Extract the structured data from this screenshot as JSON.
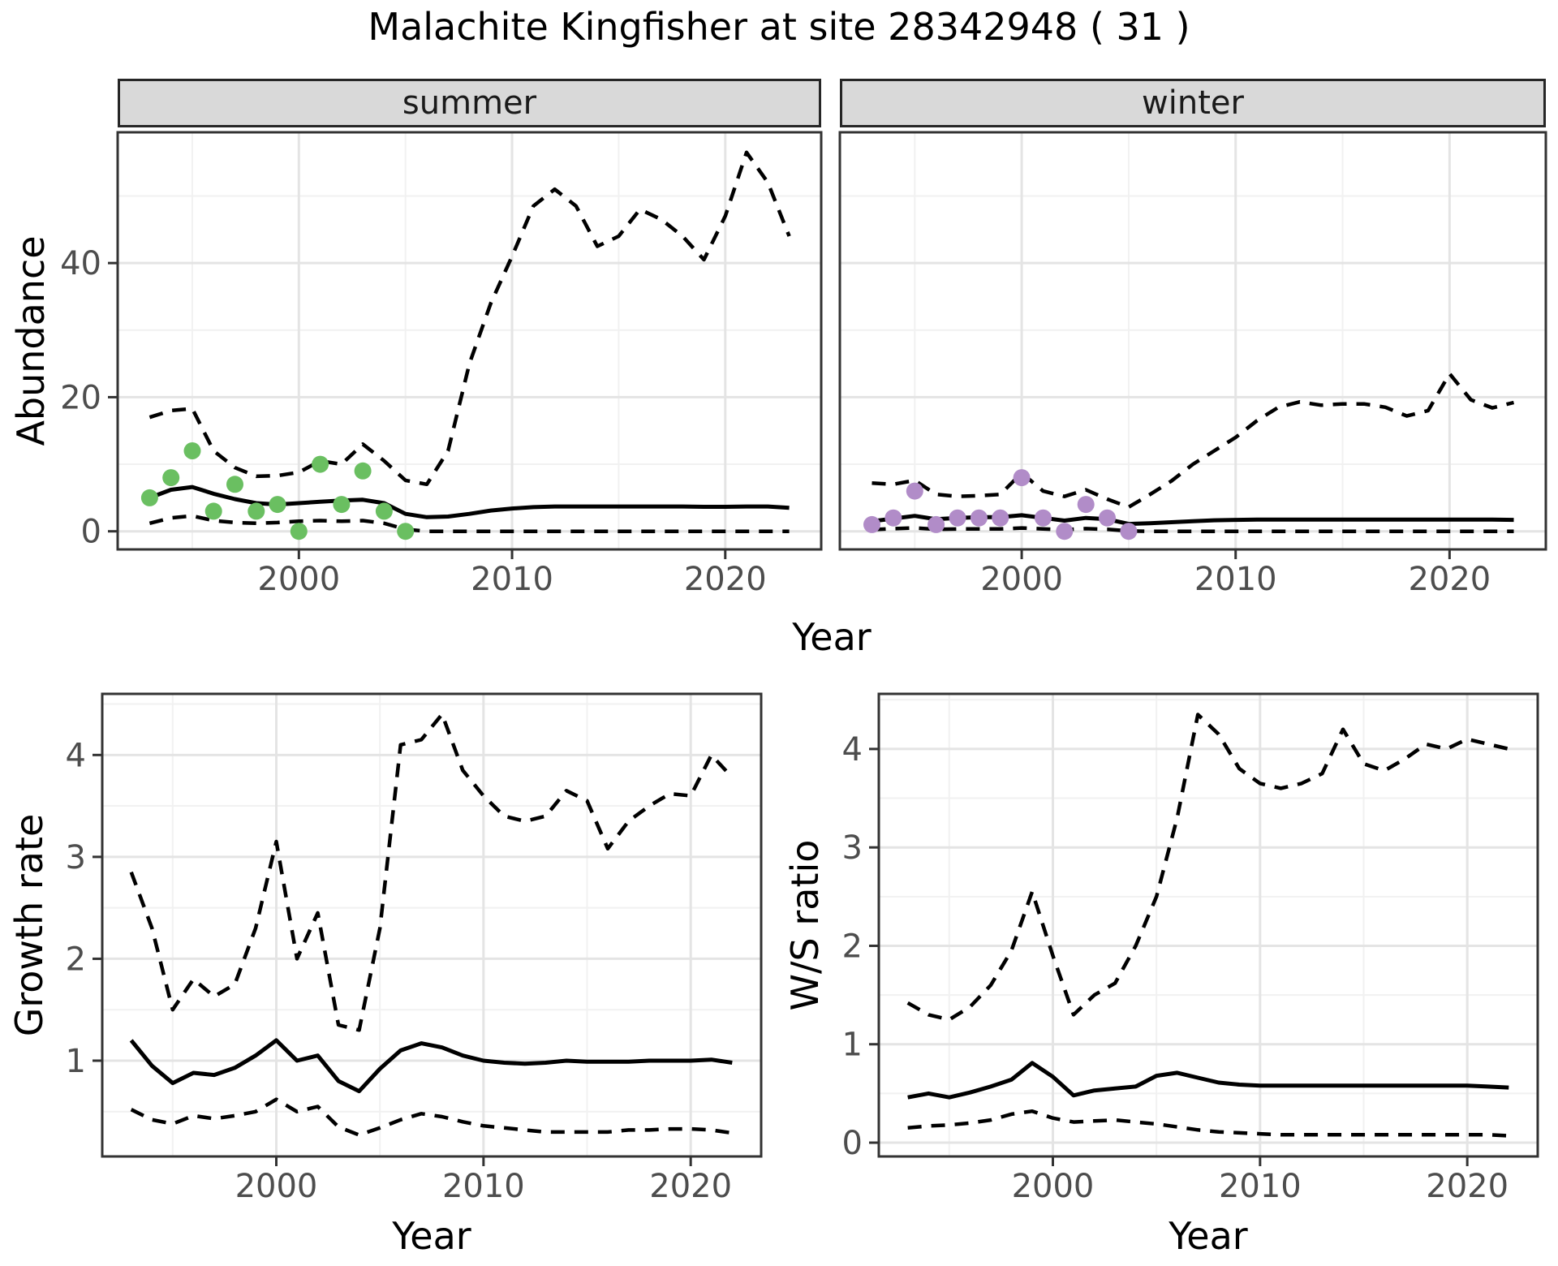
{
  "title": "Malachite Kingfisher at site 28342948 ( 31 )",
  "colors": {
    "summer_points": "#6abf61",
    "winter_points": "#b18cc8",
    "line": "#000000",
    "panel_border": "#333333",
    "grid_major": "#e4e4e4",
    "grid_minor": "#f1f1f1",
    "tick_text": "#4d4d4d",
    "strip_bg": "#d9d9d9"
  },
  "chart_data": [
    {
      "id": "abundance-summer",
      "type": "line",
      "facet": "summer",
      "xlabel": "Year",
      "ylabel": "Abundance",
      "xlim": [
        1991.5,
        2024.5
      ],
      "ylim": [
        -2.7,
        59.5
      ],
      "xticks": [
        2000,
        2010,
        2020
      ],
      "xticks_minor": [
        1995,
        2005,
        2015
      ],
      "yticks": [
        0,
        20,
        40
      ],
      "yticks_minor": [
        10,
        30,
        50
      ],
      "grid": true,
      "legend": "none",
      "series": [
        {
          "name": "upper-credible",
          "style": "dashed",
          "x": [
            1993,
            1994,
            1995,
            1996,
            1997,
            1998,
            1999,
            2000,
            2001,
            2002,
            2003,
            2004,
            2005,
            2006,
            2007,
            2008,
            2009,
            2010,
            2011,
            2012,
            2013,
            2014,
            2015,
            2016,
            2017,
            2018,
            2019,
            2020,
            2021,
            2022,
            2023
          ],
          "y": [
            17,
            18,
            18.3,
            12,
            9.5,
            8.2,
            8.3,
            8.8,
            10.5,
            10,
            13,
            10.5,
            7.6,
            7.0,
            12,
            25,
            34,
            41,
            48.5,
            51,
            48.5,
            42.5,
            44,
            48,
            46.5,
            44,
            40.5,
            47,
            56.5,
            52,
            44
          ]
        },
        {
          "name": "lower-credible",
          "style": "dashed",
          "x": [
            1993,
            1994,
            1995,
            1996,
            1997,
            1998,
            1999,
            2000,
            2001,
            2002,
            2003,
            2004,
            2005,
            2006,
            2007,
            2008,
            2009,
            2010,
            2011,
            2012,
            2013,
            2014,
            2015,
            2016,
            2017,
            2018,
            2019,
            2020,
            2021,
            2022,
            2023
          ],
          "y": [
            1.2,
            2.0,
            2.3,
            1.6,
            1.3,
            1.2,
            1.3,
            1.5,
            1.6,
            1.5,
            1.6,
            1.2,
            0.3,
            0,
            0,
            0,
            0,
            0,
            0,
            0,
            0,
            0,
            0,
            0,
            0,
            0,
            0,
            0,
            0,
            0,
            0
          ]
        },
        {
          "name": "median",
          "style": "solid",
          "x": [
            1993,
            1994,
            1995,
            1996,
            1997,
            1998,
            1999,
            2000,
            2001,
            2002,
            2003,
            2004,
            2005,
            2006,
            2007,
            2008,
            2009,
            2010,
            2011,
            2012,
            2013,
            2014,
            2015,
            2016,
            2017,
            2018,
            2019,
            2020,
            2021,
            2022,
            2023
          ],
          "y": [
            5.0,
            6.2,
            6.6,
            5.6,
            4.8,
            4.2,
            4.0,
            4.2,
            4.4,
            4.6,
            4.7,
            4.2,
            2.6,
            2.1,
            2.2,
            2.6,
            3.1,
            3.4,
            3.6,
            3.7,
            3.7,
            3.7,
            3.7,
            3.7,
            3.7,
            3.7,
            3.65,
            3.65,
            3.7,
            3.7,
            3.5
          ]
        }
      ],
      "points": {
        "name": "observed-counts",
        "color_key": "summer_points",
        "x": [
          1993,
          1994,
          1995,
          1996,
          1997,
          1998,
          1999,
          2000,
          2001,
          2002,
          2003,
          2004,
          2005
        ],
        "y": [
          5,
          8,
          12,
          3,
          7,
          3,
          4,
          0,
          10,
          4,
          9,
          3,
          0
        ]
      }
    },
    {
      "id": "abundance-winter",
      "type": "line",
      "facet": "winter",
      "xlabel": "Year",
      "ylabel": "Abundance",
      "xlim": [
        1991.5,
        2024.5
      ],
      "ylim": [
        -2.7,
        59.5
      ],
      "xticks": [
        2000,
        2010,
        2020
      ],
      "xticks_minor": [
        1995,
        2005,
        2015
      ],
      "yticks": [],
      "yticks_minor": [],
      "ygrid": [
        0,
        20,
        40
      ],
      "ygrid_minor": [
        10,
        30,
        50
      ],
      "grid": true,
      "legend": "none",
      "series": [
        {
          "name": "upper-credible",
          "style": "dashed",
          "x": [
            1993,
            1994,
            1995,
            1996,
            1997,
            1998,
            1999,
            2000,
            2001,
            2002,
            2003,
            2004,
            2005,
            2006,
            2007,
            2008,
            2009,
            2010,
            2011,
            2012,
            2013,
            2014,
            2015,
            2016,
            2017,
            2018,
            2019,
            2020,
            2021,
            2022,
            2023
          ],
          "y": [
            7.2,
            7.0,
            7.6,
            5.5,
            5.2,
            5.3,
            5.5,
            8.7,
            6.0,
            5.2,
            6.2,
            4.8,
            3.6,
            5.5,
            7.5,
            10,
            12,
            14,
            16.5,
            18.5,
            19.3,
            18.8,
            19,
            19,
            18.5,
            17.2,
            18,
            23.5,
            19.6,
            18.4,
            19.2
          ]
        },
        {
          "name": "lower-credible",
          "style": "dashed",
          "x": [
            1993,
            1994,
            1995,
            1996,
            1997,
            1998,
            1999,
            2000,
            2001,
            2002,
            2003,
            2004,
            2005,
            2006,
            2007,
            2008,
            2009,
            2010,
            2011,
            2012,
            2013,
            2014,
            2015,
            2016,
            2017,
            2018,
            2019,
            2020,
            2021,
            2022,
            2023
          ],
          "y": [
            0.25,
            0.4,
            0.5,
            0.3,
            0.35,
            0.35,
            0.35,
            0.5,
            0.35,
            0.25,
            0.4,
            0.3,
            0.05,
            0,
            0,
            0,
            0,
            0,
            0,
            0,
            0,
            0,
            0,
            0,
            0,
            0,
            0,
            0,
            0,
            0,
            0
          ]
        },
        {
          "name": "median",
          "style": "solid",
          "x": [
            1993,
            1994,
            1995,
            1996,
            1997,
            1998,
            1999,
            2000,
            2001,
            2002,
            2003,
            2004,
            2005,
            2006,
            2007,
            2008,
            2009,
            2010,
            2011,
            2012,
            2013,
            2014,
            2015,
            2016,
            2017,
            2018,
            2019,
            2020,
            2021,
            2022,
            2023
          ],
          "y": [
            1.5,
            1.9,
            2.3,
            1.8,
            2.0,
            2.1,
            2.1,
            2.4,
            2.0,
            1.6,
            2.0,
            1.8,
            1.1,
            1.2,
            1.35,
            1.5,
            1.65,
            1.7,
            1.75,
            1.75,
            1.75,
            1.75,
            1.75,
            1.75,
            1.75,
            1.75,
            1.75,
            1.75,
            1.75,
            1.75,
            1.7
          ]
        }
      ],
      "points": {
        "name": "observed-counts",
        "color_key": "winter_points",
        "x": [
          1993,
          1994,
          1995,
          1996,
          1997,
          1998,
          1999,
          2000,
          2001,
          2002,
          2003,
          2004,
          2005
        ],
        "y": [
          1,
          2,
          6,
          1,
          2,
          2,
          2,
          8,
          2,
          0,
          4,
          2,
          0
        ]
      }
    },
    {
      "id": "growth-rate",
      "type": "line",
      "facet": "",
      "xlabel": "Year",
      "ylabel": "Growth rate",
      "xlim": [
        1991.6,
        2023.4
      ],
      "ylim": [
        0.06,
        4.6
      ],
      "xticks": [
        2000,
        2010,
        2020
      ],
      "xticks_minor": [
        1995,
        2005,
        2015
      ],
      "yticks": [
        1,
        2,
        3,
        4
      ],
      "yticks_minor": [
        0.5,
        1.5,
        2.5,
        3.5,
        4.5
      ],
      "grid": true,
      "legend": "none",
      "series": [
        {
          "name": "upper-credible",
          "style": "dashed",
          "x": [
            1993,
            1994,
            1995,
            1996,
            1997,
            1998,
            1999,
            2000,
            2001,
            2002,
            2003,
            2004,
            2005,
            2006,
            2007,
            2008,
            2009,
            2010,
            2011,
            2012,
            2013,
            2014,
            2015,
            2016,
            2017,
            2018,
            2019,
            2020,
            2021,
            2022
          ],
          "y": [
            2.85,
            2.3,
            1.5,
            1.8,
            1.63,
            1.75,
            2.3,
            3.15,
            2.0,
            2.45,
            1.35,
            1.3,
            2.3,
            4.1,
            4.15,
            4.4,
            3.85,
            3.6,
            3.4,
            3.35,
            3.4,
            3.65,
            3.55,
            3.08,
            3.35,
            3.5,
            3.62,
            3.6,
            4.0,
            3.78
          ]
        },
        {
          "name": "lower-credible",
          "style": "dashed",
          "x": [
            1993,
            1994,
            1995,
            1996,
            1997,
            1998,
            1999,
            2000,
            2001,
            2002,
            2003,
            2004,
            2005,
            2006,
            2007,
            2008,
            2009,
            2010,
            2011,
            2012,
            2013,
            2014,
            2015,
            2016,
            2017,
            2018,
            2019,
            2020,
            2021,
            2022
          ],
          "y": [
            0.52,
            0.42,
            0.38,
            0.46,
            0.43,
            0.46,
            0.5,
            0.62,
            0.5,
            0.55,
            0.35,
            0.27,
            0.34,
            0.42,
            0.48,
            0.45,
            0.4,
            0.36,
            0.34,
            0.32,
            0.3,
            0.3,
            0.3,
            0.3,
            0.32,
            0.32,
            0.33,
            0.33,
            0.32,
            0.29
          ]
        },
        {
          "name": "median",
          "style": "solid",
          "x": [
            1993,
            1994,
            1995,
            1996,
            1997,
            1998,
            1999,
            2000,
            2001,
            2002,
            2003,
            2004,
            2005,
            2006,
            2007,
            2008,
            2009,
            2010,
            2011,
            2012,
            2013,
            2014,
            2015,
            2016,
            2017,
            2018,
            2019,
            2020,
            2021,
            2022
          ],
          "y": [
            1.2,
            0.95,
            0.78,
            0.88,
            0.86,
            0.93,
            1.05,
            1.2,
            1.0,
            1.05,
            0.8,
            0.7,
            0.92,
            1.1,
            1.17,
            1.13,
            1.05,
            1.0,
            0.98,
            0.97,
            0.98,
            1.0,
            0.99,
            0.99,
            0.99,
            1.0,
            1.0,
            1.0,
            1.01,
            0.98
          ]
        }
      ],
      "points": null
    },
    {
      "id": "ws-ratio",
      "type": "line",
      "facet": "",
      "xlabel": "Year",
      "ylabel": "W/S ratio",
      "xlim": [
        1991.6,
        2023.4
      ],
      "ylim": [
        -0.14,
        4.56
      ],
      "xticks": [
        2000,
        2010,
        2020
      ],
      "xticks_minor": [
        1995,
        2005,
        2015
      ],
      "yticks": [
        0,
        1,
        2,
        3,
        4
      ],
      "yticks_minor": [
        0.5,
        1.5,
        2.5,
        3.5,
        4.5
      ],
      "grid": true,
      "legend": "none",
      "series": [
        {
          "name": "upper-credible",
          "style": "dashed",
          "x": [
            1993,
            1994,
            1995,
            1996,
            1997,
            1998,
            1999,
            2000,
            2001,
            2002,
            2003,
            2004,
            2005,
            2006,
            2007,
            2008,
            2009,
            2010,
            2011,
            2012,
            2013,
            2014,
            2015,
            2016,
            2017,
            2018,
            2019,
            2020,
            2021,
            2022
          ],
          "y": [
            1.42,
            1.3,
            1.25,
            1.38,
            1.6,
            1.95,
            2.55,
            1.9,
            1.3,
            1.5,
            1.62,
            2.0,
            2.5,
            3.3,
            4.35,
            4.15,
            3.8,
            3.65,
            3.6,
            3.65,
            3.75,
            4.2,
            3.85,
            3.78,
            3.9,
            4.05,
            4.0,
            4.1,
            4.05,
            4.0
          ]
        },
        {
          "name": "lower-credible",
          "style": "dashed",
          "x": [
            1993,
            1994,
            1995,
            1996,
            1997,
            1998,
            1999,
            2000,
            2001,
            2002,
            2003,
            2004,
            2005,
            2006,
            2007,
            2008,
            2009,
            2010,
            2011,
            2012,
            2013,
            2014,
            2015,
            2016,
            2017,
            2018,
            2019,
            2020,
            2021,
            2022
          ],
          "y": [
            0.15,
            0.17,
            0.18,
            0.2,
            0.23,
            0.29,
            0.32,
            0.25,
            0.21,
            0.22,
            0.23,
            0.21,
            0.19,
            0.16,
            0.13,
            0.11,
            0.1,
            0.09,
            0.08,
            0.08,
            0.08,
            0.08,
            0.08,
            0.08,
            0.08,
            0.08,
            0.08,
            0.08,
            0.08,
            0.07
          ]
        },
        {
          "name": "median",
          "style": "solid",
          "x": [
            1993,
            1994,
            1995,
            1996,
            1997,
            1998,
            1999,
            2000,
            2001,
            2002,
            2003,
            2004,
            2005,
            2006,
            2007,
            2008,
            2009,
            2010,
            2011,
            2012,
            2013,
            2014,
            2015,
            2016,
            2017,
            2018,
            2019,
            2020,
            2021,
            2022
          ],
          "y": [
            0.46,
            0.5,
            0.46,
            0.51,
            0.57,
            0.64,
            0.81,
            0.67,
            0.48,
            0.53,
            0.55,
            0.57,
            0.68,
            0.71,
            0.66,
            0.61,
            0.59,
            0.58,
            0.58,
            0.58,
            0.58,
            0.58,
            0.58,
            0.58,
            0.58,
            0.58,
            0.58,
            0.58,
            0.57,
            0.56
          ]
        }
      ],
      "points": null
    }
  ]
}
